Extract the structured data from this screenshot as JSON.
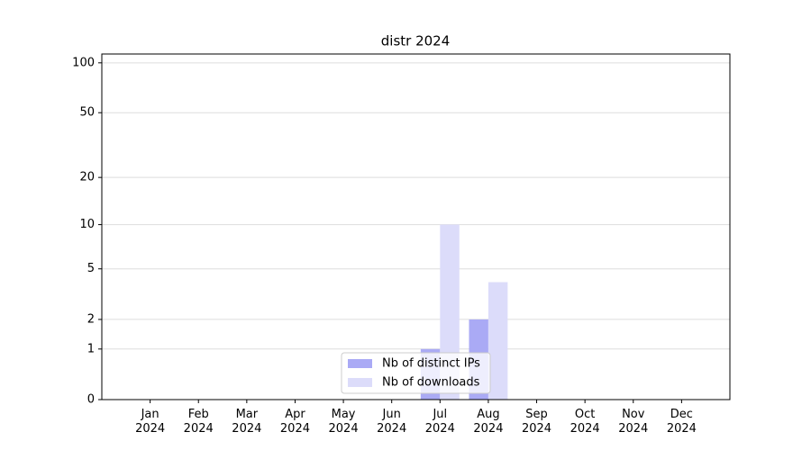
{
  "chart_data": {
    "type": "bar",
    "title": "distr 2024",
    "yscale": "log1p",
    "categories": [
      "Jan 2024",
      "Feb 2024",
      "Mar 2024",
      "Apr 2024",
      "May 2024",
      "Jun 2024",
      "Jul 2024",
      "Aug 2024",
      "Sep 2024",
      "Oct 2024",
      "Nov 2024",
      "Dec 2024"
    ],
    "series": [
      {
        "name": "Nb of distinct IPs",
        "color": "#aaaaf5",
        "values": [
          0,
          0,
          0,
          0,
          0,
          0,
          1,
          2,
          0,
          0,
          0,
          0
        ]
      },
      {
        "name": "Nb of downloads",
        "color": "#dcdcfa",
        "values": [
          0,
          0,
          0,
          0,
          0,
          0,
          10,
          4,
          0,
          0,
          0,
          0
        ]
      }
    ],
    "ylim": [
      0,
      113
    ],
    "yticks": [
      0,
      1,
      2,
      5,
      10,
      20,
      50,
      100
    ],
    "grid": true,
    "legend": "lower center"
  }
}
